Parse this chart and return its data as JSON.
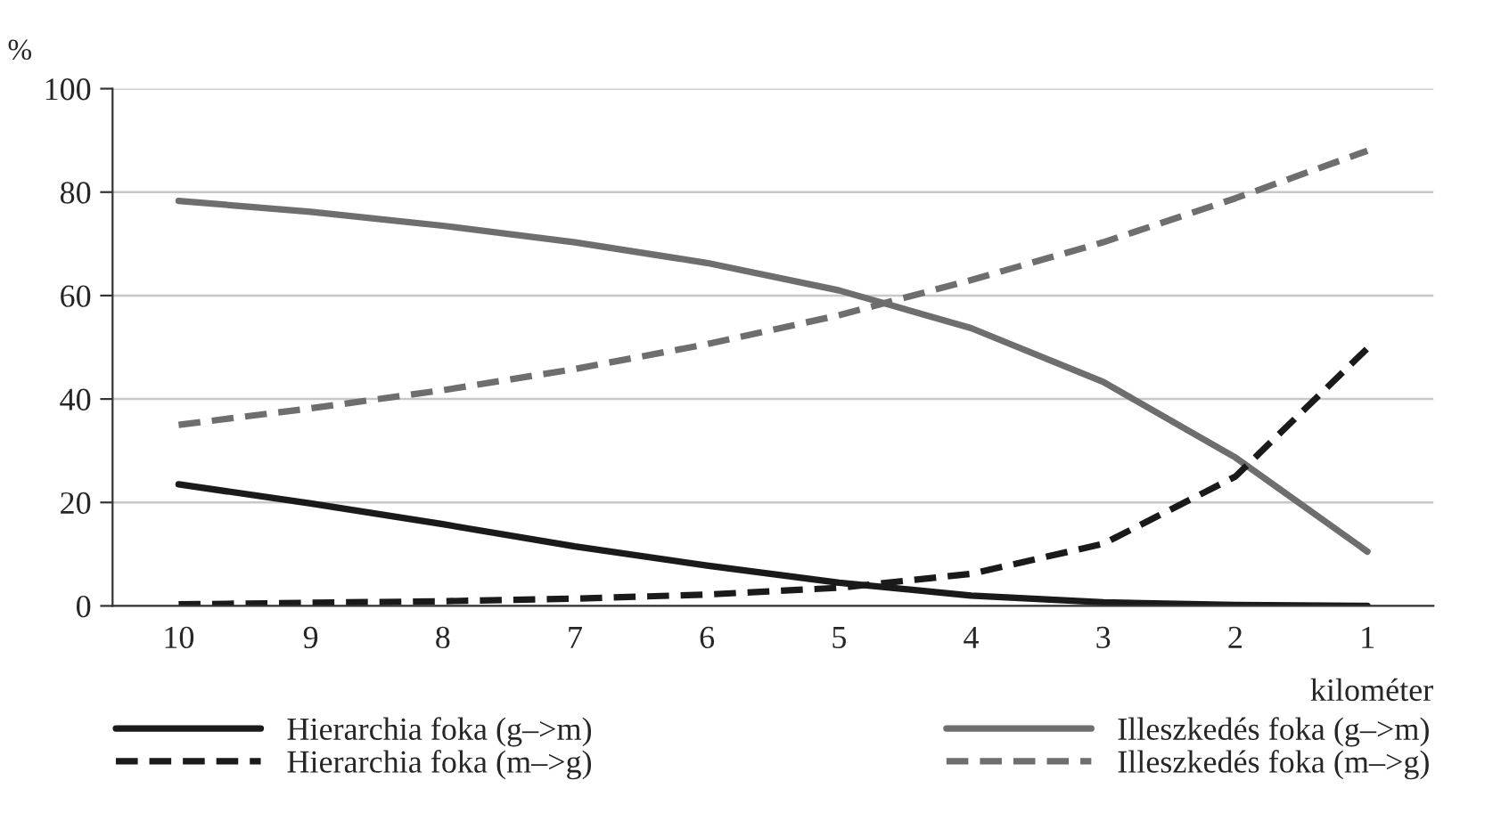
{
  "chart_data": {
    "type": "line",
    "ylabel": "%",
    "xlabel": "kilométer",
    "categories": [
      "10",
      "9",
      "8",
      "7",
      "6",
      "5",
      "4",
      "3",
      "2",
      "1"
    ],
    "series": [
      {
        "name": "Hierarchia foka (g–>m)",
        "color": "#1a1a1a",
        "line_style": "solid",
        "values": [
          23.5,
          19.8,
          15.8,
          11.5,
          7.8,
          4.5,
          2,
          0.7,
          0.2,
          0
        ]
      },
      {
        "name": "Illeszkedés foka (g–>m)",
        "color": "#6e6e6e",
        "line_style": "solid",
        "values": [
          78.3,
          76.2,
          73.5,
          70.3,
          66.3,
          61,
          53.7,
          43.3,
          28.7,
          10.5
        ]
      },
      {
        "name": "Hierarchia foka (m–>g)",
        "color": "#1a1a1a",
        "line_style": "dashed",
        "values": [
          0.3,
          0.6,
          0.9,
          1.4,
          2.2,
          3.5,
          6.2,
          12,
          25,
          49.8
        ]
      },
      {
        "name": "Illeszkedés foka (m–>g)",
        "color": "#6e6e6e",
        "line_style": "dashed",
        "values": [
          35,
          38.2,
          41.7,
          45.8,
          50.6,
          56.2,
          63,
          70.3,
          78.8,
          88
        ]
      }
    ],
    "ylim": [
      0,
      100
    ],
    "yticks": [
      0,
      20,
      40,
      60,
      80,
      100
    ],
    "grid": "y",
    "legend": "bottom",
    "marker": "none"
  }
}
